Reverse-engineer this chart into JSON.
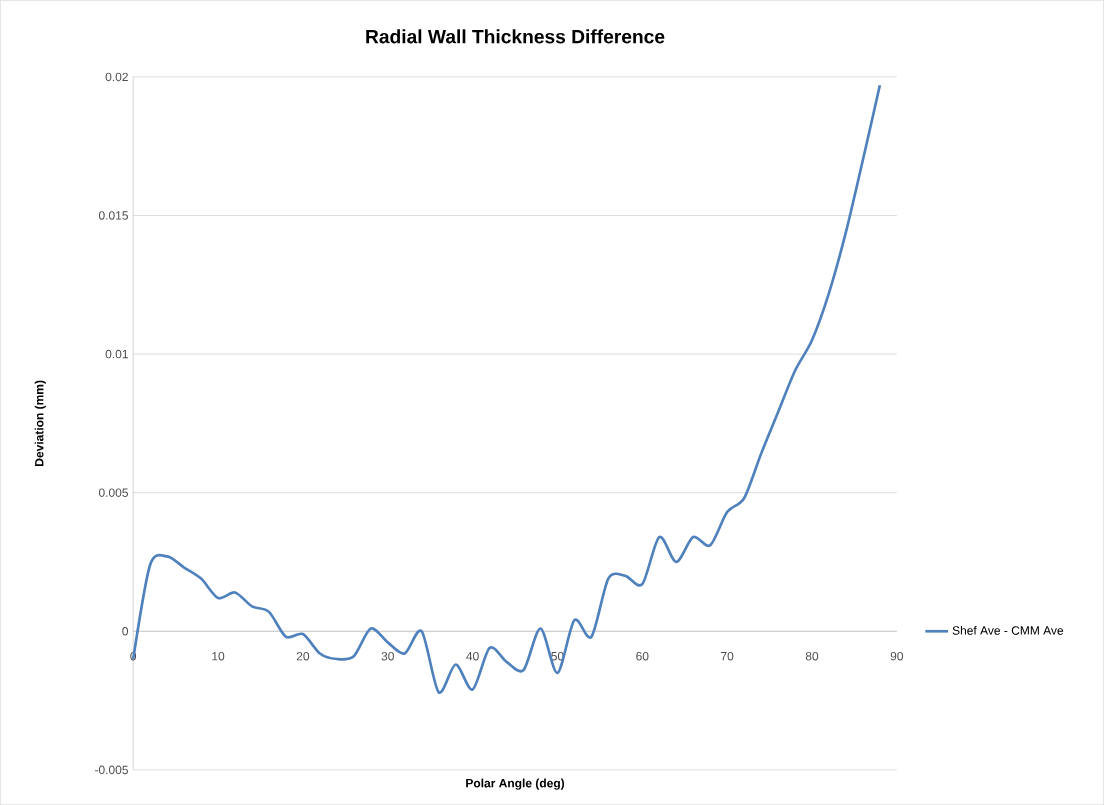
{
  "chart_data": {
    "type": "line",
    "title": "Radial Wall Thickness Difference",
    "xlabel": "Polar Angle (deg)",
    "ylabel": "Deviation (mm)",
    "x": [
      0,
      2,
      4,
      6,
      8,
      10,
      12,
      14,
      16,
      18,
      20,
      22,
      24,
      26,
      28,
      30,
      32,
      34,
      36,
      38,
      40,
      42,
      44,
      46,
      48,
      50,
      52,
      54,
      56,
      58,
      60,
      62,
      64,
      66,
      68,
      70,
      72,
      74,
      76,
      78,
      80,
      82,
      84,
      86,
      88
    ],
    "series": [
      {
        "name": "Shef Ave - CMM Ave",
        "color": "#4f81bd",
        "values": [
          -0.001,
          0.0024,
          0.0027,
          0.0023,
          0.0019,
          0.0012,
          0.0014,
          0.0009,
          0.0007,
          -0.0002,
          -0.0001,
          -0.0008,
          -0.001,
          -0.0009,
          0.0001,
          -0.0004,
          -0.0008,
          0.0,
          -0.0022,
          -0.0012,
          -0.0021,
          -0.0006,
          -0.0011,
          -0.0014,
          0.0001,
          -0.0015,
          0.0004,
          -0.0002,
          0.0019,
          0.002,
          0.0017,
          0.0034,
          0.0025,
          0.0034,
          0.0031,
          0.0043,
          0.0048,
          0.0064,
          0.0079,
          0.0094,
          0.0105,
          0.0122,
          0.0144,
          0.017,
          0.0197
        ]
      }
    ],
    "xlim": [
      0,
      90
    ],
    "xticks": [
      0,
      10,
      20,
      30,
      40,
      50,
      60,
      70,
      80,
      90
    ],
    "ylim": [
      -0.005,
      0.02
    ],
    "yticks": [
      -0.005,
      0,
      0.005,
      0.01,
      0.015,
      0.02
    ],
    "grid": "y",
    "legend": "right",
    "marker": "none",
    "line_style": "solid"
  }
}
